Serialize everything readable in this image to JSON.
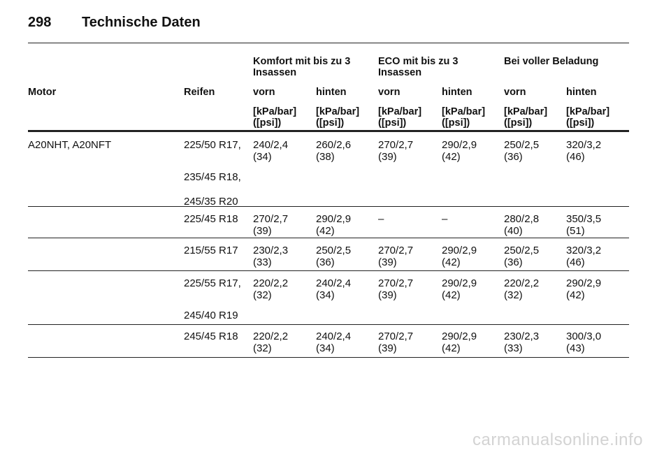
{
  "header": {
    "page_number": "298",
    "title": "Technische Daten"
  },
  "table": {
    "groups": [
      {
        "lines": [
          "Komfort mit bis zu 3",
          "Insassen"
        ]
      },
      {
        "lines": [
          "ECO mit bis zu 3",
          "Insassen"
        ]
      },
      {
        "lines": [
          "Bei voller Beladung"
        ]
      }
    ],
    "columns": [
      "Motor",
      "Reifen",
      "vorn",
      "hinten",
      "vorn",
      "hinten",
      "vorn",
      "hinten"
    ],
    "units": [
      [
        "[kPa/bar]",
        "([psi])"
      ],
      [
        "[kPa/bar]",
        "([psi])"
      ],
      [
        "[kPa/bar]",
        "([psi])"
      ],
      [
        "[kPa/bar]",
        "([psi])"
      ],
      [
        "[kPa/bar]",
        "([psi])"
      ],
      [
        "[kPa/bar]",
        "([psi])"
      ]
    ],
    "rows": [
      {
        "motor": "A20NHT, A20NFT",
        "tires": [
          "225/50 R17,",
          "235/45 R18,",
          "245/35 R20"
        ],
        "values": [
          [
            "240/2,4",
            "(34)"
          ],
          [
            "260/2,6",
            "(38)"
          ],
          [
            "270/2,7",
            "(39)"
          ],
          [
            "290/2,9",
            "(42)"
          ],
          [
            "250/2,5",
            "(36)"
          ],
          [
            "320/3,2",
            "(46)"
          ]
        ]
      },
      {
        "tires": [
          "225/45 R18"
        ],
        "values": [
          [
            "270/2,7",
            "(39)"
          ],
          [
            "290/2,9",
            "(42)"
          ],
          [
            "–"
          ],
          [
            "–"
          ],
          [
            "280/2,8",
            "(40)"
          ],
          [
            "350/3,5",
            "(51)"
          ]
        ]
      },
      {
        "tires": [
          "215/55 R17"
        ],
        "values": [
          [
            "230/2,3",
            "(33)"
          ],
          [
            "250/2,5",
            "(36)"
          ],
          [
            "270/2,7",
            "(39)"
          ],
          [
            "290/2,9",
            "(42)"
          ],
          [
            "250/2,5",
            "(36)"
          ],
          [
            "320/3,2",
            "(46)"
          ]
        ]
      },
      {
        "tires": [
          "225/55 R17,",
          "245/40 R19"
        ],
        "values": [
          [
            "220/2,2",
            "(32)"
          ],
          [
            "240/2,4",
            "(34)"
          ],
          [
            "270/2,7",
            "(39)"
          ],
          [
            "290/2,9",
            "(42)"
          ],
          [
            "220/2,2",
            "(32)"
          ],
          [
            "290/2,9",
            "(42)"
          ]
        ]
      },
      {
        "tires": [
          "245/45 R18"
        ],
        "values": [
          [
            "220/2,2",
            "(32)"
          ],
          [
            "240/2,4",
            "(34)"
          ],
          [
            "270/2,7",
            "(39)"
          ],
          [
            "290/2,9",
            "(42)"
          ],
          [
            "230/2,3",
            "(33)"
          ],
          [
            "300/3,0",
            "(43)"
          ]
        ]
      }
    ]
  },
  "footer": {
    "watermark": "carmanualsonline.info"
  }
}
